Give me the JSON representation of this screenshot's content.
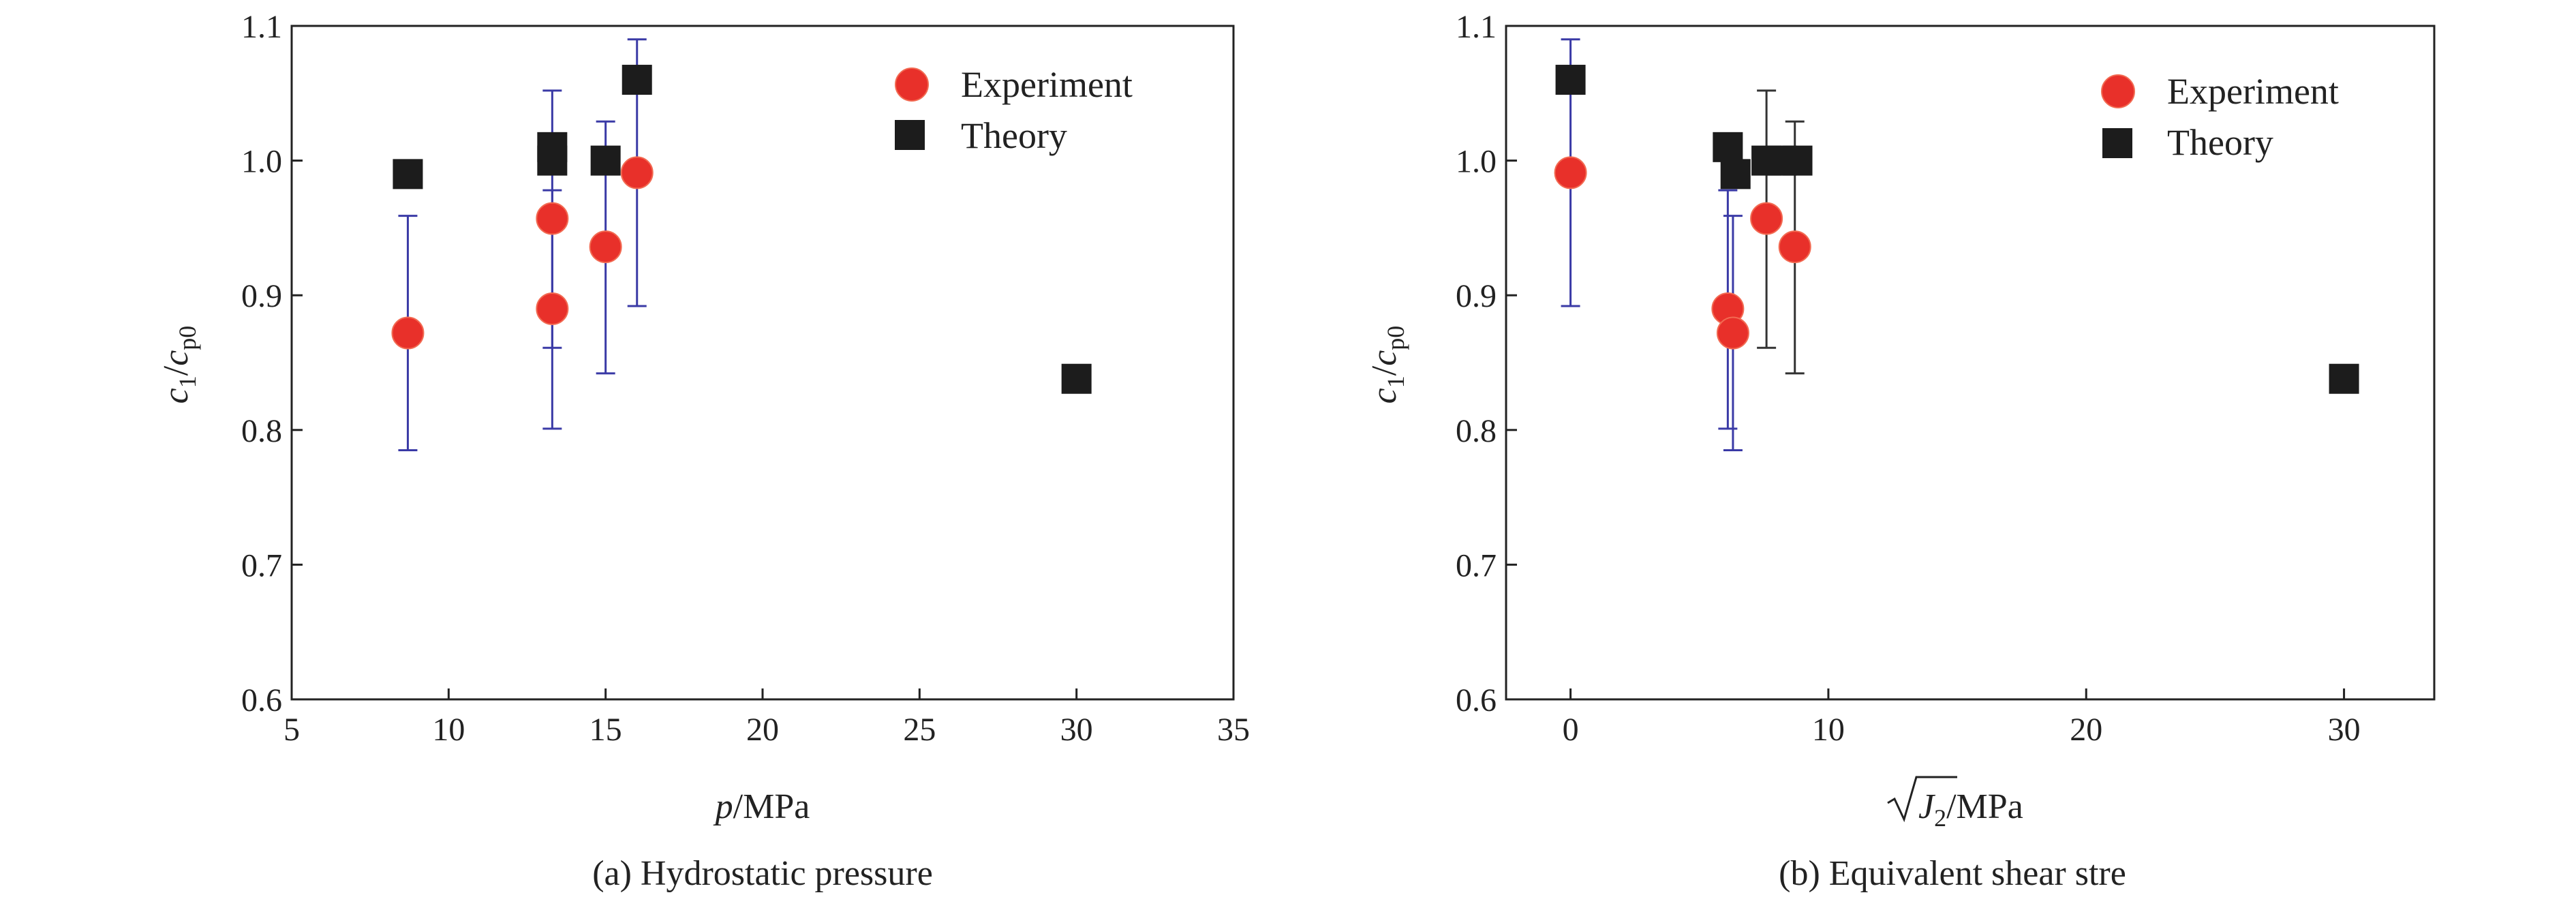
{
  "colors": {
    "experiment": "#e8302a",
    "experiment_edge": "#f26a52",
    "theory": "#1c1c1c",
    "errorbar_blue": "#3a3aa6",
    "errorbar_black": "#333333",
    "axis": "#222222"
  },
  "chart_data": [
    {
      "type": "scatter",
      "caption": "(a) Hydrostatic pressure",
      "xlabel": {
        "var": "p",
        "unit": "/MPa"
      },
      "ylabel": {
        "var1": "c",
        "sub1": "1",
        "var2": "c",
        "sub2": "p0"
      },
      "xlim": [
        5,
        35
      ],
      "ylim": [
        0.6,
        1.1
      ],
      "xticks": [
        "5",
        "10",
        "15",
        "20",
        "25",
        "30",
        "35"
      ],
      "yticks": [
        "0.6",
        "0.7",
        "0.8",
        "0.9",
        "1.0",
        "1.1"
      ],
      "legend": {
        "placement": "top-right",
        "entries": [
          "Experiment",
          "Theory"
        ]
      },
      "series": [
        {
          "name": "Experiment",
          "marker": "circle",
          "points": [
            {
              "x": 8.7,
              "y": 0.872,
              "err_low": 0.785,
              "err_high": 0.959
            },
            {
              "x": 13.3,
              "y": 0.957,
              "err_low": 0.861,
              "err_high": 1.052
            },
            {
              "x": 13.3,
              "y": 0.89,
              "err_low": 0.801,
              "err_high": 0.978
            },
            {
              "x": 15.0,
              "y": 0.936,
              "err_low": 0.842,
              "err_high": 1.029
            },
            {
              "x": 16.0,
              "y": 0.991,
              "err_low": 0.892,
              "err_high": 1.09
            }
          ]
        },
        {
          "name": "Theory",
          "marker": "square",
          "points": [
            {
              "x": 8.7,
              "y": 0.99
            },
            {
              "x": 13.3,
              "y": 1.0
            },
            {
              "x": 13.3,
              "y": 1.01
            },
            {
              "x": 15.0,
              "y": 1.0
            },
            {
              "x": 16.0,
              "y": 1.06
            },
            {
              "x": 30.0,
              "y": 0.838
            }
          ]
        }
      ]
    },
    {
      "type": "scatter",
      "caption": "(b) Equivalent shear stre",
      "xlabel": {
        "var": "J",
        "sub": "2",
        "unit": "/MPa"
      },
      "ylabel": {
        "var1": "c",
        "sub1": "1",
        "var2": "c",
        "sub2": "p0"
      },
      "xlim": [
        -2.5,
        33.5
      ],
      "ylim": [
        0.6,
        1.1
      ],
      "xticks": [
        "0",
        "10",
        "20",
        "30"
      ],
      "yticks": [
        "0.6",
        "0.7",
        "0.8",
        "0.9",
        "1.0",
        "1.1"
      ],
      "legend": {
        "placement": "top-right",
        "entries": [
          "Experiment",
          "Theory"
        ]
      },
      "series": [
        {
          "name": "Experiment",
          "marker": "circle",
          "points": [
            {
              "x": 0.0,
              "y": 0.991,
              "err_low": 0.892,
              "err_high": 1.09
            },
            {
              "x": 6.1,
              "y": 0.89,
              "err_low": 0.801,
              "err_high": 0.978
            },
            {
              "x": 6.3,
              "y": 0.872,
              "err_low": 0.785,
              "err_high": 0.959
            },
            {
              "x": 7.6,
              "y": 0.957,
              "err_low": 0.861,
              "err_high": 1.052
            },
            {
              "x": 8.7,
              "y": 0.936,
              "err_low": 0.842,
              "err_high": 1.029
            }
          ]
        },
        {
          "name": "Theory",
          "marker": "square",
          "points": [
            {
              "x": 0.0,
              "y": 1.06
            },
            {
              "x": 6.1,
              "y": 1.01
            },
            {
              "x": 6.4,
              "y": 0.99
            },
            {
              "x": 7.6,
              "y": 1.0
            },
            {
              "x": 8.2,
              "y": 1.0
            },
            {
              "x": 8.8,
              "y": 1.0
            },
            {
              "x": 30.0,
              "y": 0.838
            }
          ]
        }
      ]
    }
  ]
}
